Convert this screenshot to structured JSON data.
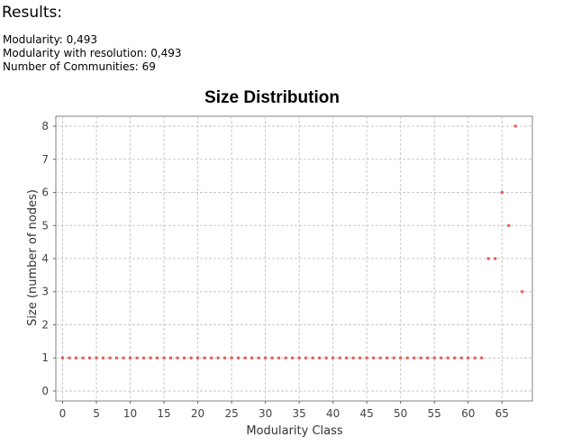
{
  "results": {
    "heading": "Results:",
    "modularity": "Modularity: 0,493",
    "modularity_resolution": "Modularity with resolution: 0,493",
    "communities": "Number of Communities: 69"
  },
  "colors": {
    "point": "#e8544e",
    "grid": "#c8c8c8",
    "frame": "#808080"
  },
  "chart_data": {
    "type": "scatter",
    "title": "Size Distribution",
    "xlabel": "Modularity Class",
    "ylabel": "Size (number of nodes)",
    "xlim": [
      -1,
      69.5
    ],
    "ylim": [
      -0.3,
      8.3
    ],
    "x_ticks": [
      0,
      5,
      10,
      15,
      20,
      25,
      30,
      35,
      40,
      45,
      50,
      55,
      60,
      65
    ],
    "y_ticks": [
      0,
      1,
      2,
      3,
      4,
      5,
      6,
      7,
      8
    ],
    "grid": true,
    "legend": "none",
    "x": [
      0,
      1,
      2,
      3,
      4,
      5,
      6,
      7,
      8,
      9,
      10,
      11,
      12,
      13,
      14,
      15,
      16,
      17,
      18,
      19,
      20,
      21,
      22,
      23,
      24,
      25,
      26,
      27,
      28,
      29,
      30,
      31,
      32,
      33,
      34,
      35,
      36,
      37,
      38,
      39,
      40,
      41,
      42,
      43,
      44,
      45,
      46,
      47,
      48,
      49,
      50,
      51,
      52,
      53,
      54,
      55,
      56,
      57,
      58,
      59,
      60,
      61,
      62,
      63,
      64,
      65,
      66,
      67,
      68
    ],
    "y": [
      1,
      1,
      1,
      1,
      1,
      1,
      1,
      1,
      1,
      1,
      1,
      1,
      1,
      1,
      1,
      1,
      1,
      1,
      1,
      1,
      1,
      1,
      1,
      1,
      1,
      1,
      1,
      1,
      1,
      1,
      1,
      1,
      1,
      1,
      1,
      1,
      1,
      1,
      1,
      1,
      1,
      1,
      1,
      1,
      1,
      1,
      1,
      1,
      1,
      1,
      1,
      1,
      1,
      1,
      1,
      1,
      1,
      1,
      1,
      1,
      1,
      1,
      1,
      4,
      4,
      6,
      5,
      8,
      3
    ]
  }
}
